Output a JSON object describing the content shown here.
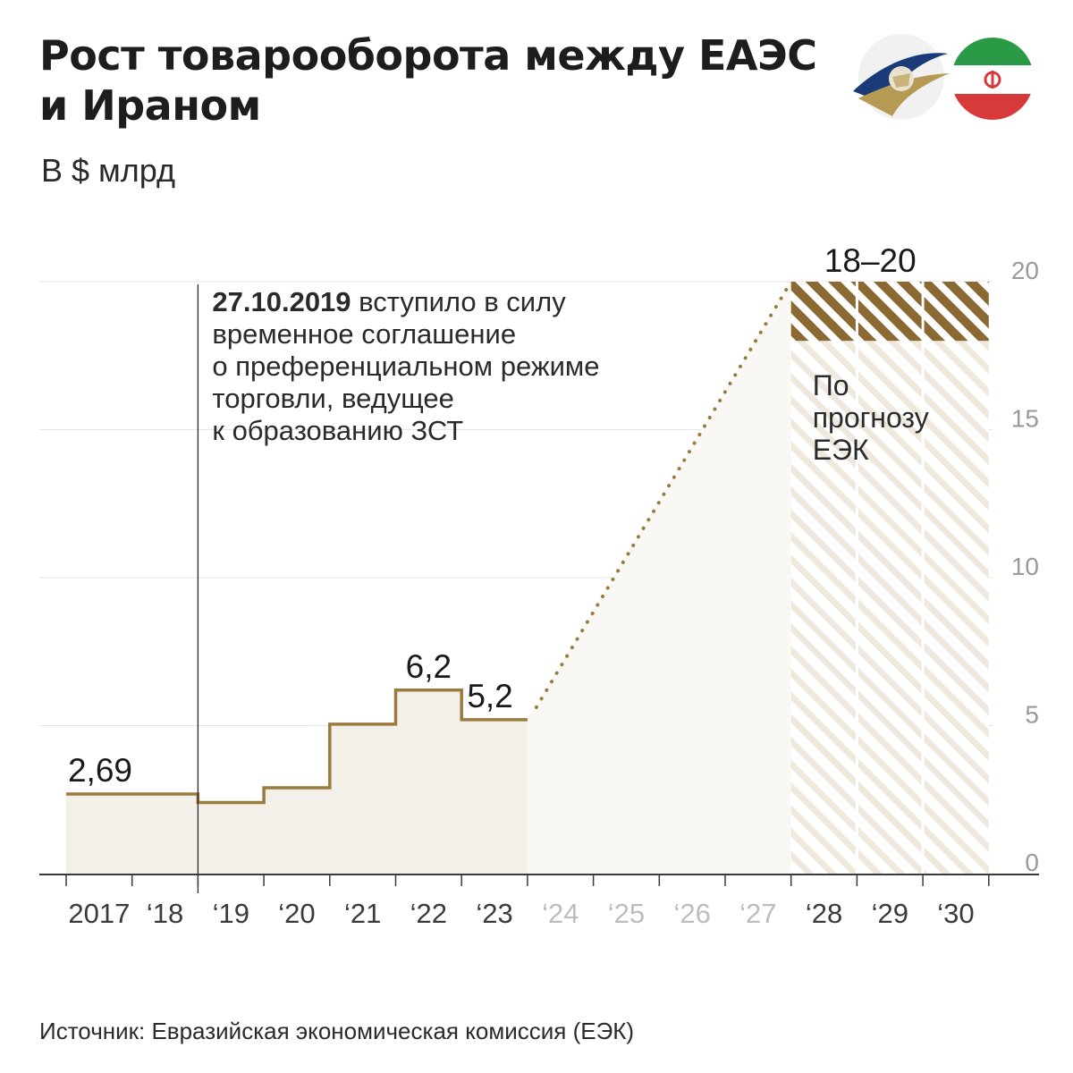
{
  "header": {
    "title_line1": "Рост товарооборота между ЕАЭС",
    "title_line2": "и Ираном",
    "unit": "В $ млрд"
  },
  "logos": {
    "left": "eaeu-emblem-icon",
    "right": "iran-flag-icon"
  },
  "source": "Источник: Евразийская экономическая комиссия (ЕЭК)",
  "colors": {
    "line": "#9b7a3e",
    "area": "#f3f0e9",
    "forecast_hatch": "#8a6a32",
    "grid": "#e6e6e6",
    "axis_tick_future": "#bdbdbd"
  },
  "chart_data": {
    "type": "area",
    "step": true,
    "x_tick_labels": [
      "2017",
      "‘18",
      "‘19",
      "‘20",
      "‘21",
      "‘22",
      "‘23",
      "‘24",
      "‘25",
      "‘26",
      "‘27",
      "‘28",
      "‘29",
      "‘30"
    ],
    "x_tick_labels_future_from_index": 7,
    "x": [
      2017,
      2018,
      2019,
      2020,
      2021,
      2022,
      2023
    ],
    "values": [
      2.69,
      2.69,
      2.4,
      2.9,
      5.05,
      6.2,
      5.2
    ],
    "value_labels": [
      {
        "x": 2017,
        "text": "2,69"
      },
      {
        "x": 2022,
        "text": "6,2"
      },
      {
        "x": 2023,
        "text": "5,2"
      }
    ],
    "forecast": {
      "x_range": [
        2028,
        2030
      ],
      "value_range": [
        18,
        20
      ],
      "label": "18–20",
      "note_lines": [
        "По",
        "прогнозу",
        "ЕЭК"
      ]
    },
    "annotation": {
      "x": 2019,
      "bold": "27.10.2019",
      "lines": [
        "вступило в силу",
        "временное соглашение",
        "о преференциальном режиме",
        "торговли, ведущее",
        "к образованию ЗСТ"
      ]
    },
    "y_ticks": [
      0,
      5,
      10,
      15,
      20
    ],
    "y_tick_labels": [
      "0",
      "5",
      "10",
      "15",
      "20"
    ],
    "ylim": [
      0,
      20
    ],
    "xlim": [
      2017,
      2031
    ],
    "grid": true
  }
}
